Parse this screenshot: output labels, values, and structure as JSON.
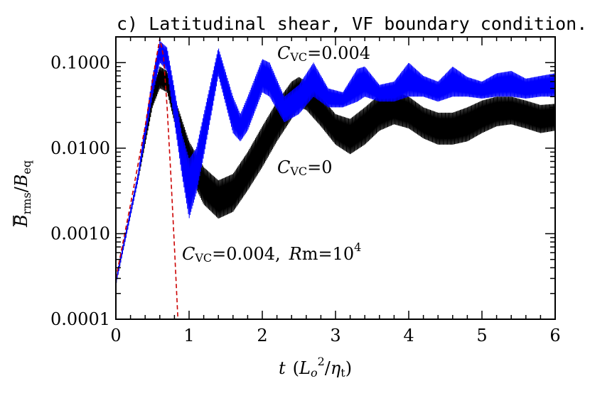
{
  "chart_data": {
    "type": "line",
    "title": "c) Latitudinal shear, VF boundary condition.",
    "xlabel": {
      "main": "t",
      "open": "(",
      "L": "L",
      "o": "o",
      "sq": "2",
      "slash": "/",
      "eta": "η",
      "t": "t",
      "close": ")"
    },
    "ylabel": {
      "B": "B",
      "rms": "rms",
      "slash": "/",
      "B2": "B",
      "eq": "eq"
    },
    "x_range": [
      0,
      6
    ],
    "y_range": [
      0.0001,
      0.2
    ],
    "y_scale": "log",
    "x_ticks": [
      {
        "value": 0,
        "label": "0"
      },
      {
        "value": 1,
        "label": "1"
      },
      {
        "value": 2,
        "label": "2"
      },
      {
        "value": 3,
        "label": "3"
      },
      {
        "value": 4,
        "label": "4"
      },
      {
        "value": 5,
        "label": "5"
      },
      {
        "value": 6,
        "label": "6"
      }
    ],
    "y_ticks": [
      {
        "value": 0.0001,
        "label": "0.0001"
      },
      {
        "value": 0.001,
        "label": "0.0010"
      },
      {
        "value": 0.01,
        "label": "0.0100"
      },
      {
        "value": 0.1,
        "label": "0.1000"
      }
    ],
    "annotations": {
      "blue": {
        "C": "C",
        "sub": "VC",
        "rest": "=0.004"
      },
      "black": {
        "C": "C",
        "sub": "VC",
        "rest": "=0"
      },
      "red": {
        "C": "C",
        "sub": "VC",
        "rest": "=0.004,",
        "R": "R",
        "m": "m=10",
        "exp": "4"
      }
    },
    "series": [
      {
        "color": "#000000",
        "style": "band",
        "x": [
          0.0,
          0.3,
          0.5,
          0.6,
          0.7,
          0.8,
          1.0,
          1.2,
          1.4,
          1.6,
          1.8,
          2.0,
          2.2,
          2.4,
          2.5,
          2.6,
          2.8,
          3.0,
          3.2,
          3.4,
          3.6,
          3.8,
          4.0,
          4.2,
          4.4,
          4.6,
          4.8,
          5.0,
          5.2,
          5.4,
          5.6,
          5.8,
          6.0
        ],
        "upper": [
          0.0003,
          0.005,
          0.05,
          0.09,
          0.08,
          0.04,
          0.012,
          0.006,
          0.0042,
          0.005,
          0.009,
          0.018,
          0.035,
          0.06,
          0.068,
          0.06,
          0.04,
          0.025,
          0.022,
          0.03,
          0.042,
          0.046,
          0.04,
          0.03,
          0.026,
          0.026,
          0.03,
          0.036,
          0.04,
          0.04,
          0.036,
          0.032,
          0.033
        ],
        "lower": [
          0.00025,
          0.004,
          0.03,
          0.05,
          0.045,
          0.02,
          0.005,
          0.0022,
          0.0015,
          0.0018,
          0.0032,
          0.006,
          0.012,
          0.022,
          0.03,
          0.028,
          0.018,
          0.011,
          0.0085,
          0.011,
          0.016,
          0.019,
          0.017,
          0.013,
          0.011,
          0.011,
          0.012,
          0.015,
          0.018,
          0.019,
          0.017,
          0.015,
          0.016
        ]
      },
      {
        "color": "#0000ff",
        "style": "band",
        "x": [
          0.0,
          0.3,
          0.5,
          0.6,
          0.7,
          0.8,
          0.9,
          1.0,
          1.1,
          1.2,
          1.4,
          1.6,
          1.7,
          1.8,
          2.0,
          2.1,
          2.3,
          2.5,
          2.7,
          2.9,
          3.1,
          3.3,
          3.4,
          3.6,
          3.8,
          4.0,
          4.2,
          4.4,
          4.6,
          4.8,
          5.0,
          5.2,
          5.4,
          5.6,
          5.8,
          6.0
        ],
        "upper": [
          0.0003,
          0.005,
          0.07,
          0.18,
          0.15,
          0.05,
          0.015,
          0.0075,
          0.01,
          0.025,
          0.15,
          0.04,
          0.025,
          0.04,
          0.11,
          0.1,
          0.04,
          0.055,
          0.1,
          0.05,
          0.045,
          0.085,
          0.09,
          0.055,
          0.06,
          0.1,
          0.07,
          0.06,
          0.09,
          0.068,
          0.06,
          0.075,
          0.08,
          0.065,
          0.07,
          0.075
        ],
        "lower": [
          0.00025,
          0.004,
          0.04,
          0.1,
          0.08,
          0.02,
          0.005,
          0.0015,
          0.003,
          0.008,
          0.07,
          0.015,
          0.012,
          0.016,
          0.045,
          0.04,
          0.02,
          0.025,
          0.04,
          0.03,
          0.03,
          0.035,
          0.04,
          0.035,
          0.035,
          0.04,
          0.04,
          0.035,
          0.04,
          0.04,
          0.038,
          0.04,
          0.04,
          0.038,
          0.04,
          0.04
        ]
      },
      {
        "color": "#cc0000",
        "style": "dashed",
        "x": [
          0.0,
          0.2,
          0.4,
          0.55,
          0.6,
          0.65,
          0.7,
          0.75,
          0.8,
          0.85,
          0.9
        ],
        "y": [
          0.0003,
          0.0022,
          0.018,
          0.11,
          0.19,
          0.12,
          0.03,
          0.005,
          0.0007,
          9e-05,
          1e-05
        ]
      }
    ]
  }
}
